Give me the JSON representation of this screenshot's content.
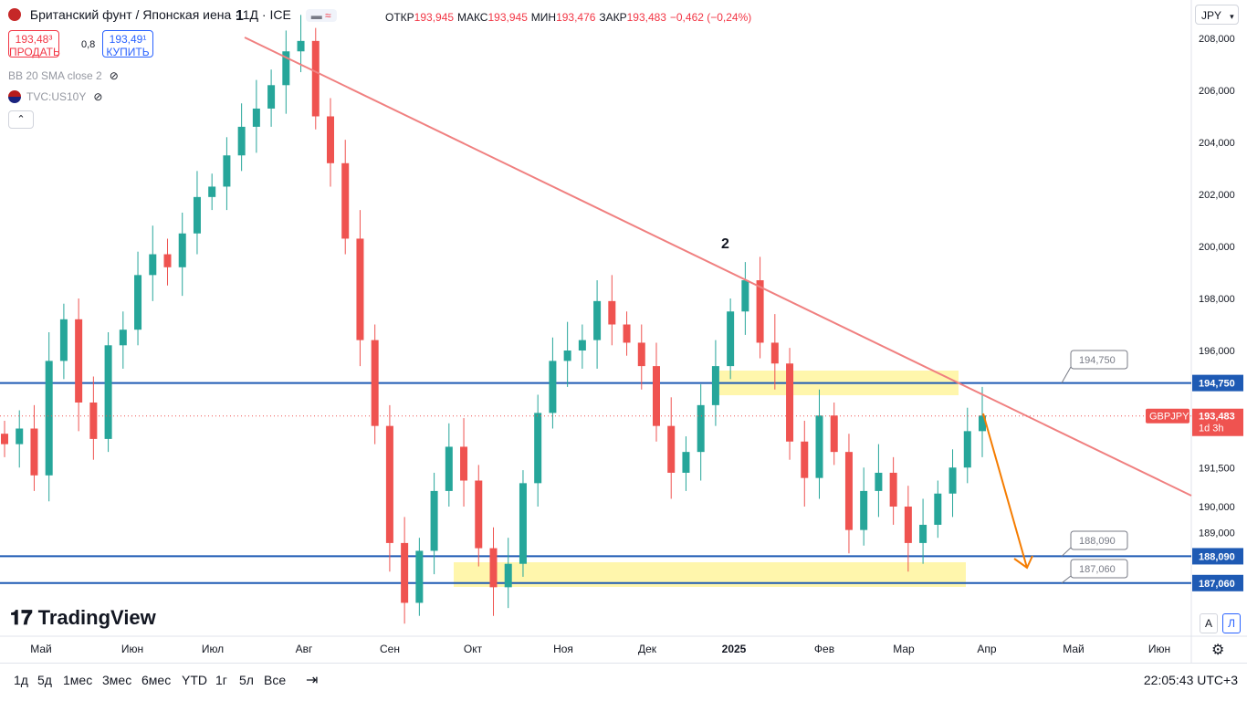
{
  "header": {
    "title": "Британский фунт / Японская иена · 1Д · ICE",
    "ohlc": [
      {
        "k": "ОТКР",
        "v": "193,945"
      },
      {
        "k": "МАКС",
        "v": "193,945"
      },
      {
        "k": "МИН",
        "v": "193,476"
      },
      {
        "k": "ЗАКР",
        "v": "193,483"
      }
    ],
    "change": "−0,462 (−0,24%)",
    "sell_price": "193,48³",
    "sell_label": "ПРОДАТЬ",
    "spread": "0,8",
    "buy_price": "193,49¹",
    "buy_label": "КУПИТЬ"
  },
  "indicators": {
    "bb": "BB 20 SMA close 2",
    "tvc": "TVC:US10Y"
  },
  "currency": "JPY",
  "colors": {
    "up": "#26a69a",
    "down": "#ef5350",
    "trendline": "#f08080",
    "hline": "#2962ff",
    "zone": "#fff59d",
    "arrow": "#f57c00"
  },
  "chart_data": {
    "type": "candlestick",
    "symbol": "GBPJPY",
    "x_labels": [
      "Май",
      "Июн",
      "Июл",
      "Авг",
      "Сен",
      "Окт",
      "Ноя",
      "Дек",
      "2025",
      "Фев",
      "Мар",
      "Апр",
      "Май",
      "Июн"
    ],
    "y_ticks": [
      "208,000",
      "206,000",
      "204,000",
      "202,000",
      "200,000",
      "198,000",
      "196,000",
      "191,500",
      "190,000",
      "189,000"
    ],
    "ylim": [
      186.0,
      208.5
    ],
    "last_price": "193,483",
    "last_time": "1d 3h",
    "symbol_tag": "GBPJPY",
    "levels": [
      {
        "label": "194,750",
        "value": 194.75
      },
      {
        "label": "188,090",
        "value": 188.09
      },
      {
        "label": "187,060",
        "value": 187.06
      }
    ],
    "wave_labels": [
      "1",
      "2"
    ],
    "closes": [
      192.4,
      193.0,
      191.2,
      195.6,
      197.2,
      194.0,
      192.6,
      196.2,
      196.8,
      198.9,
      199.7,
      199.2,
      200.5,
      201.9,
      202.3,
      203.5,
      204.6,
      205.3,
      206.2,
      207.5,
      207.9,
      205.0,
      203.2,
      200.3,
      196.4,
      193.1,
      188.6,
      186.3,
      188.3,
      190.6,
      192.3,
      191.0,
      188.4,
      186.9,
      187.8,
      190.9,
      193.6,
      195.6,
      196.0,
      196.4,
      197.9,
      197.0,
      196.3,
      195.4,
      193.1,
      191.3,
      192.1,
      193.9,
      195.4,
      197.5,
      198.7,
      196.3,
      195.5,
      192.5,
      191.1,
      193.5,
      192.1,
      189.1,
      190.6,
      191.3,
      190.0,
      188.6,
      189.3,
      190.5,
      191.5,
      192.9,
      193.5
    ],
    "annotations": [
      "trendline from Jul high",
      "supply zone ~194.75",
      "demand zone ~187.06–188.09",
      "projected move down to ~188"
    ]
  },
  "bottom": {
    "ranges": [
      "1д",
      "5д",
      "1мес",
      "3мес",
      "6мес",
      "YTD",
      "1г",
      "5л",
      "Все"
    ],
    "clock": "22:05:43 UTC+3"
  },
  "logo_text": "TradingView",
  "scale_btns": [
    "А",
    "Л"
  ]
}
